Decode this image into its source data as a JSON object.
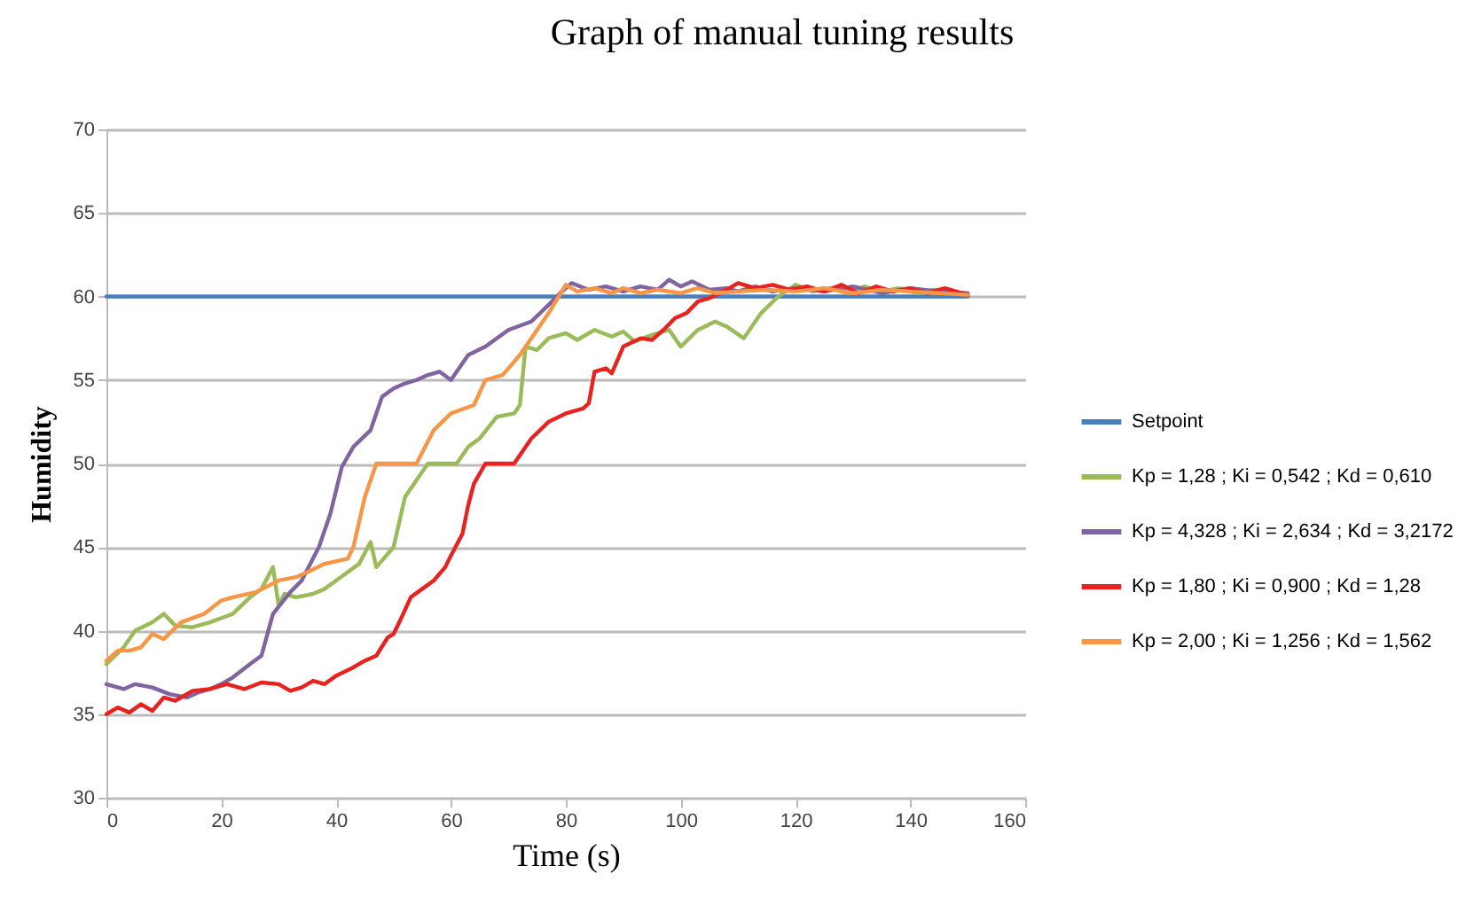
{
  "chart_data": {
    "type": "line",
    "title": "Graph of manual tuning results",
    "xlabel": "Time (s)",
    "ylabel": "Humidity",
    "xlim": [
      0,
      160
    ],
    "xticks": [
      0,
      20,
      40,
      60,
      80,
      100,
      120,
      140,
      160
    ],
    "ylim": [
      30,
      70
    ],
    "yticks": [
      30,
      35,
      40,
      45,
      50,
      55,
      60,
      65,
      70
    ],
    "grid": "y",
    "legend": "right",
    "line_style": "solid",
    "marker": "none",
    "series": [
      {
        "name": "Setpoint",
        "color": "#4a7ebb",
        "x": [
          0,
          150
        ],
        "values": [
          60,
          60
        ]
      },
      {
        "name": "Kp = 1,28 ; Ki = 0,542 ; Kd = 0,610",
        "color": "#9bbb59",
        "x": [
          0,
          3,
          5,
          8,
          10,
          12,
          15,
          18,
          22,
          25,
          27,
          29,
          30,
          31,
          33,
          36,
          38,
          40,
          42,
          44,
          46,
          47,
          48,
          50,
          52,
          54,
          56,
          58,
          61,
          63,
          65,
          68,
          71,
          72,
          73,
          75,
          77,
          80,
          82,
          85,
          88,
          90,
          92,
          95,
          98,
          100,
          103,
          106,
          108,
          111,
          114,
          117,
          120,
          123,
          126,
          129,
          132,
          135,
          138,
          141,
          144,
          147,
          150
        ],
        "values": [
          38,
          39,
          40,
          40.5,
          41,
          40.3,
          40.2,
          40.5,
          41,
          42,
          42.5,
          43.8,
          41.5,
          42.2,
          42,
          42.2,
          42.5,
          43,
          43.5,
          44,
          45.3,
          43.8,
          44.2,
          45,
          48,
          49,
          50,
          50,
          50,
          51,
          51.5,
          52.8,
          53,
          53.5,
          57,
          56.8,
          57.5,
          57.8,
          57.4,
          58,
          57.6,
          57.9,
          57.3,
          57.7,
          58,
          57,
          58,
          58.5,
          58.2,
          57.5,
          59,
          60,
          60.7,
          60.3,
          60.5,
          60.2,
          60.6,
          60.3,
          60.5,
          60.2,
          60.4,
          60.3,
          60.1
        ]
      },
      {
        "name": "Kp = 4,328 ; Ki = 2,634 ; Kd = 3,2172",
        "color": "#8064a2",
        "x": [
          0,
          3,
          5,
          8,
          11,
          14,
          16,
          18,
          20,
          22,
          25,
          27,
          29,
          32,
          34,
          37,
          39,
          41,
          43,
          46,
          48,
          50,
          52,
          54,
          56,
          58,
          60,
          63,
          66,
          70,
          74,
          77,
          79,
          81,
          84,
          87,
          90,
          93,
          96,
          98,
          100,
          102,
          105,
          108,
          110,
          113,
          116,
          120,
          125,
          130,
          135,
          140,
          145,
          150
        ],
        "values": [
          36.8,
          36.5,
          36.8,
          36.6,
          36.2,
          36,
          36.3,
          36.5,
          36.8,
          37.2,
          38,
          38.5,
          41,
          42.3,
          43,
          45,
          47,
          49.8,
          51,
          52,
          54,
          54.5,
          54.8,
          55,
          55.3,
          55.5,
          55,
          56.5,
          57,
          58,
          58.5,
          59.5,
          60.2,
          60.8,
          60.4,
          60.6,
          60.3,
          60.6,
          60.4,
          61,
          60.6,
          60.9,
          60.4,
          60.5,
          60.3,
          60.6,
          60.3,
          60.5,
          60.3,
          60.6,
          60.2,
          60.5,
          60.3,
          60.2
        ]
      },
      {
        "name": "Kp = 1,80 ; Ki = 0,900 ; Kd = 1,28",
        "color": "#e8231f",
        "x": [
          0,
          2,
          4,
          6,
          8,
          10,
          12,
          15,
          18,
          21,
          24,
          27,
          30,
          32,
          34,
          36,
          38,
          40,
          43,
          45,
          47,
          49,
          50,
          51,
          53,
          55,
          57,
          59,
          60,
          62,
          63,
          64,
          66,
          68,
          71,
          74,
          77,
          80,
          83,
          84,
          85,
          87,
          88,
          90,
          93,
          95,
          97,
          99,
          101,
          103,
          105,
          108,
          110,
          113,
          116,
          119,
          122,
          125,
          128,
          131,
          134,
          137,
          140,
          143,
          146,
          150
        ],
        "values": [
          35,
          35.4,
          35.1,
          35.6,
          35.2,
          36,
          35.8,
          36.4,
          36.5,
          36.8,
          36.5,
          36.9,
          36.8,
          36.4,
          36.6,
          37,
          36.8,
          37.3,
          37.8,
          38.2,
          38.5,
          39.6,
          39.8,
          40.5,
          42,
          42.5,
          43,
          43.8,
          44.5,
          45.8,
          47.5,
          48.8,
          50,
          50,
          50,
          51.5,
          52.5,
          53,
          53.3,
          53.6,
          55.5,
          55.7,
          55.4,
          57,
          57.5,
          57.4,
          58,
          58.7,
          59,
          59.7,
          59.9,
          60.4,
          60.8,
          60.5,
          60.7,
          60.4,
          60.6,
          60.3,
          60.7,
          60.2,
          60.6,
          60.3,
          60.5,
          60.2,
          60.5,
          60.1
        ]
      },
      {
        "name": "Kp = 2,00 ; Ki = 1,256 ; Kd = 1,562",
        "color": "#f79646",
        "x": [
          0,
          2,
          4,
          6,
          8,
          10,
          13,
          17,
          20,
          22,
          26,
          30,
          33,
          35,
          38,
          42,
          43,
          44,
          45,
          47,
          50,
          54,
          57,
          60,
          64,
          66,
          69,
          72,
          75,
          77,
          80,
          82,
          85,
          88,
          90,
          93,
          96,
          100,
          103,
          106,
          110,
          115,
          120,
          125,
          130,
          135,
          140,
          145,
          150
        ],
        "values": [
          38.2,
          38.8,
          38.8,
          39,
          39.8,
          39.5,
          40.5,
          41,
          41.8,
          42,
          42.3,
          43,
          43.2,
          43.5,
          44,
          44.3,
          45,
          46.5,
          48,
          50,
          50,
          50,
          52,
          53,
          53.5,
          55,
          55.3,
          56.5,
          58,
          59,
          60.7,
          60.3,
          60.5,
          60.2,
          60.5,
          60.2,
          60.4,
          60.2,
          60.5,
          60.2,
          60.3,
          60.4,
          60.3,
          60.5,
          60.2,
          60.4,
          60.3,
          60.2,
          60.1
        ]
      }
    ]
  }
}
